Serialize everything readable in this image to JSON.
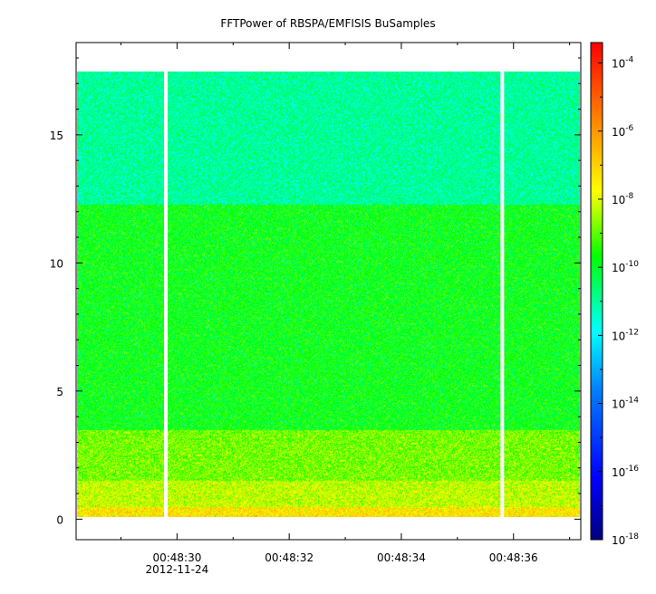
{
  "chart_data": {
    "type": "heatmap",
    "title": "FFTPower of RBSPA/EMFISIS  BuSamples",
    "xlabel": "",
    "ylabel": "",
    "x_start": "00:48:28.2",
    "x_end": "00:48:37.2",
    "x_ticks": [
      {
        "value": "00:48:30",
        "label": "00:48:30",
        "sublabel": "2012-11-24"
      },
      {
        "value": "00:48:32",
        "label": "00:48:32"
      },
      {
        "value": "00:48:34",
        "label": "00:48:34"
      },
      {
        "value": "00:48:36",
        "label": "00:48:36"
      }
    ],
    "ylim": [
      -0.8,
      18.6
    ],
    "y_ticks": [
      0,
      5,
      10,
      15
    ],
    "y_tick_labels": [
      "0",
      "5",
      "10",
      "15"
    ],
    "data_gaps": [
      "00:48:29.8",
      "00:48:35.8"
    ],
    "bands": [
      {
        "y_range": [
          0,
          0.5
        ],
        "log_power": -7.3
      },
      {
        "y_range": [
          0.5,
          1.5
        ],
        "log_power": -8.2
      },
      {
        "y_range": [
          1.5,
          3.5
        ],
        "log_power": -8.8
      },
      {
        "y_range": [
          3.5,
          12.3
        ],
        "log_power": -9.8
      },
      {
        "y_range": [
          12.3,
          17.5
        ],
        "log_power": -11.0
      }
    ],
    "colorbar": {
      "scale": "log",
      "range": [
        -18,
        -3.4
      ],
      "colormap": [
        "#00007f",
        "#0000ff",
        "#007fff",
        "#00ffff",
        "#00ff00",
        "#ffff00",
        "#ff7f00",
        "#ff0000"
      ],
      "ticks": [
        {
          "exp": -4,
          "label": "-4"
        },
        {
          "exp": -6,
          "label": "-6"
        },
        {
          "exp": -8,
          "label": "-8"
        },
        {
          "exp": -10,
          "label": "-10"
        },
        {
          "exp": -12,
          "label": "-12"
        },
        {
          "exp": -14,
          "label": "-14"
        },
        {
          "exp": -16,
          "label": "-16"
        },
        {
          "exp": -18,
          "label": "-18"
        }
      ],
      "base_label": "10"
    }
  }
}
